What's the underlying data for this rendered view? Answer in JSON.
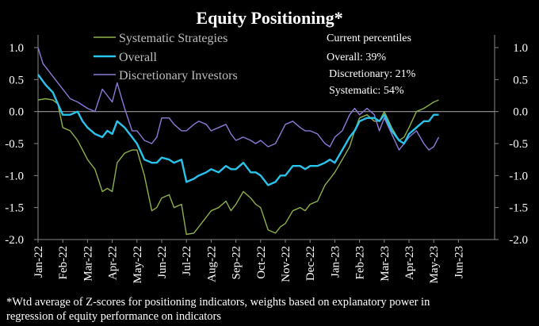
{
  "chart_data": {
    "type": "line",
    "title": "Equity Positioning*",
    "footnote_line1": "*Wtd average of Z-scores for positioning indicators, weights based on explanatory power in",
    "footnote_line2": "regression of equity performance on indicators",
    "y_ticks_left": [
      "1.0",
      "0.5",
      "0.0",
      "-0.5",
      "-1.0",
      "-1.5",
      "-2.0"
    ],
    "y_ticks_right": [
      "1.0",
      "0.5",
      "0.0",
      "-0.5",
      "-1.0",
      "-1.5",
      "-2.0"
    ],
    "y_tick_values": [
      1.0,
      0.5,
      0.0,
      -0.5,
      -1.0,
      -1.5,
      -2.0
    ],
    "ylim": [
      -2.0,
      1.0
    ],
    "x_tick_labels": [
      "Jan-22",
      "Feb-22",
      "Mar-22",
      "Apr-22",
      "May-22",
      "Jun-22",
      "Jul-22",
      "Aug-22",
      "Sep-22",
      "Oct-22",
      "Nov-22",
      "Dec-22",
      "Jan-23",
      "Feb-23",
      "Mar-23",
      "Apr-23",
      "May-23",
      "Jun-23"
    ],
    "xlim": [
      0,
      17
    ],
    "zero_line": true,
    "legend_position": "top-left",
    "annotation": {
      "title": "Current percentiles",
      "lines": [
        "Overall: 39%",
        "Discretionary: 21%",
        "Systematic: 54%"
      ]
    },
    "series": [
      {
        "name": "Systematic Strategies",
        "color": "#8db04a",
        "width": 1.4,
        "points": [
          [
            0.0,
            0.18
          ],
          [
            0.3,
            0.2
          ],
          [
            0.6,
            0.18
          ],
          [
            0.8,
            0.12
          ],
          [
            1.0,
            -0.25
          ],
          [
            1.3,
            -0.3
          ],
          [
            1.6,
            -0.45
          ],
          [
            1.8,
            -0.6
          ],
          [
            2.0,
            -0.75
          ],
          [
            2.3,
            -0.9
          ],
          [
            2.6,
            -1.25
          ],
          [
            2.8,
            -1.2
          ],
          [
            3.0,
            -1.25
          ],
          [
            3.2,
            -0.8
          ],
          [
            3.5,
            -0.65
          ],
          [
            3.8,
            -0.6
          ],
          [
            4.0,
            -0.6
          ],
          [
            4.3,
            -1.0
          ],
          [
            4.6,
            -1.55
          ],
          [
            4.8,
            -1.5
          ],
          [
            5.0,
            -1.35
          ],
          [
            5.3,
            -1.3
          ],
          [
            5.5,
            -1.5
          ],
          [
            5.8,
            -1.45
          ],
          [
            6.0,
            -1.92
          ],
          [
            6.3,
            -1.9
          ],
          [
            6.5,
            -1.8
          ],
          [
            6.8,
            -1.65
          ],
          [
            7.0,
            -1.55
          ],
          [
            7.3,
            -1.5
          ],
          [
            7.6,
            -1.4
          ],
          [
            7.8,
            -1.55
          ],
          [
            8.0,
            -1.45
          ],
          [
            8.3,
            -1.25
          ],
          [
            8.6,
            -1.35
          ],
          [
            8.8,
            -1.45
          ],
          [
            9.0,
            -1.5
          ],
          [
            9.3,
            -1.85
          ],
          [
            9.6,
            -1.9
          ],
          [
            9.8,
            -1.8
          ],
          [
            10.0,
            -1.75
          ],
          [
            10.3,
            -1.55
          ],
          [
            10.6,
            -1.5
          ],
          [
            10.8,
            -1.55
          ],
          [
            11.0,
            -1.45
          ],
          [
            11.3,
            -1.4
          ],
          [
            11.6,
            -1.15
          ],
          [
            11.8,
            -1.05
          ],
          [
            12.0,
            -0.95
          ],
          [
            12.3,
            -0.75
          ],
          [
            12.6,
            -0.55
          ],
          [
            12.8,
            -0.3
          ],
          [
            13.0,
            -0.1
          ],
          [
            13.3,
            -0.05
          ],
          [
            13.6,
            -0.15
          ],
          [
            13.8,
            -0.15
          ],
          [
            14.0,
            0.0
          ],
          [
            14.3,
            -0.25
          ],
          [
            14.6,
            -0.45
          ],
          [
            14.8,
            -0.4
          ],
          [
            15.0,
            -0.25
          ],
          [
            15.3,
            0.0
          ],
          [
            15.6,
            0.05
          ],
          [
            15.8,
            0.1
          ],
          [
            16.0,
            0.15
          ],
          [
            16.2,
            0.18
          ]
        ]
      },
      {
        "name": "Overall",
        "color": "#29c4ec",
        "width": 2.4,
        "points": [
          [
            0.0,
            0.58
          ],
          [
            0.3,
            0.42
          ],
          [
            0.6,
            0.3
          ],
          [
            0.8,
            0.12
          ],
          [
            1.0,
            -0.05
          ],
          [
            1.3,
            -0.05
          ],
          [
            1.6,
            0.0
          ],
          [
            1.8,
            -0.15
          ],
          [
            2.0,
            -0.25
          ],
          [
            2.3,
            -0.35
          ],
          [
            2.6,
            -0.4
          ],
          [
            2.8,
            -0.3
          ],
          [
            3.0,
            -0.35
          ],
          [
            3.2,
            -0.15
          ],
          [
            3.5,
            -0.25
          ],
          [
            3.8,
            -0.4
          ],
          [
            4.0,
            -0.5
          ],
          [
            4.3,
            -0.75
          ],
          [
            4.6,
            -0.8
          ],
          [
            4.8,
            -0.8
          ],
          [
            5.0,
            -0.72
          ],
          [
            5.3,
            -0.75
          ],
          [
            5.5,
            -0.8
          ],
          [
            5.8,
            -0.75
          ],
          [
            6.0,
            -1.1
          ],
          [
            6.3,
            -1.05
          ],
          [
            6.5,
            -1.0
          ],
          [
            6.8,
            -0.95
          ],
          [
            7.0,
            -0.9
          ],
          [
            7.3,
            -0.95
          ],
          [
            7.6,
            -0.85
          ],
          [
            7.8,
            -0.9
          ],
          [
            8.0,
            -0.9
          ],
          [
            8.3,
            -0.8
          ],
          [
            8.6,
            -0.95
          ],
          [
            8.8,
            -0.95
          ],
          [
            9.0,
            -1.0
          ],
          [
            9.3,
            -1.15
          ],
          [
            9.6,
            -1.1
          ],
          [
            9.8,
            -1.0
          ],
          [
            10.0,
            -1.0
          ],
          [
            10.3,
            -0.85
          ],
          [
            10.6,
            -0.85
          ],
          [
            10.8,
            -0.9
          ],
          [
            11.0,
            -0.85
          ],
          [
            11.3,
            -0.85
          ],
          [
            11.6,
            -0.8
          ],
          [
            11.8,
            -0.75
          ],
          [
            12.0,
            -0.8
          ],
          [
            12.3,
            -0.6
          ],
          [
            12.6,
            -0.4
          ],
          [
            12.8,
            -0.3
          ],
          [
            13.0,
            -0.15
          ],
          [
            13.3,
            -0.1
          ],
          [
            13.6,
            -0.1
          ],
          [
            13.8,
            -0.15
          ],
          [
            14.0,
            -0.05
          ],
          [
            14.3,
            -0.3
          ],
          [
            14.6,
            -0.45
          ],
          [
            14.8,
            -0.5
          ],
          [
            15.0,
            -0.35
          ],
          [
            15.3,
            -0.25
          ],
          [
            15.6,
            -0.15
          ],
          [
            15.8,
            -0.15
          ],
          [
            16.0,
            -0.05
          ],
          [
            16.2,
            -0.05
          ]
        ]
      },
      {
        "name": "Discretionary Investors",
        "color": "#8a7ad8",
        "width": 1.4,
        "points": [
          [
            0.0,
            1.0
          ],
          [
            0.2,
            0.75
          ],
          [
            0.5,
            0.6
          ],
          [
            0.8,
            0.45
          ],
          [
            1.0,
            0.35
          ],
          [
            1.3,
            0.2
          ],
          [
            1.6,
            0.15
          ],
          [
            1.8,
            0.1
          ],
          [
            2.0,
            0.05
          ],
          [
            2.3,
            0.0
          ],
          [
            2.6,
            0.35
          ],
          [
            2.8,
            0.25
          ],
          [
            3.0,
            0.15
          ],
          [
            3.2,
            0.45
          ],
          [
            3.5,
            0.05
          ],
          [
            3.8,
            -0.3
          ],
          [
            4.0,
            -0.3
          ],
          [
            4.3,
            -0.45
          ],
          [
            4.6,
            -0.5
          ],
          [
            4.8,
            -0.4
          ],
          [
            5.0,
            -0.1
          ],
          [
            5.3,
            -0.1
          ],
          [
            5.5,
            -0.2
          ],
          [
            5.8,
            -0.3
          ],
          [
            6.0,
            -0.3
          ],
          [
            6.3,
            -0.2
          ],
          [
            6.5,
            -0.15
          ],
          [
            6.8,
            -0.2
          ],
          [
            7.0,
            -0.3
          ],
          [
            7.3,
            -0.25
          ],
          [
            7.6,
            -0.2
          ],
          [
            7.8,
            -0.35
          ],
          [
            8.0,
            -0.45
          ],
          [
            8.3,
            -0.4
          ],
          [
            8.6,
            -0.45
          ],
          [
            8.8,
            -0.5
          ],
          [
            9.0,
            -0.45
          ],
          [
            9.3,
            -0.55
          ],
          [
            9.6,
            -0.5
          ],
          [
            9.8,
            -0.35
          ],
          [
            10.0,
            -0.2
          ],
          [
            10.3,
            -0.15
          ],
          [
            10.6,
            -0.25
          ],
          [
            10.8,
            -0.3
          ],
          [
            11.0,
            -0.3
          ],
          [
            11.3,
            -0.35
          ],
          [
            11.6,
            -0.5
          ],
          [
            11.8,
            -0.55
          ],
          [
            12.0,
            -0.4
          ],
          [
            12.3,
            -0.3
          ],
          [
            12.6,
            -0.05
          ],
          [
            12.8,
            0.05
          ],
          [
            13.0,
            -0.05
          ],
          [
            13.3,
            0.05
          ],
          [
            13.6,
            -0.05
          ],
          [
            13.8,
            -0.3
          ],
          [
            14.0,
            -0.1
          ],
          [
            14.3,
            -0.35
          ],
          [
            14.6,
            -0.6
          ],
          [
            14.8,
            -0.5
          ],
          [
            15.0,
            -0.4
          ],
          [
            15.3,
            -0.3
          ],
          [
            15.6,
            -0.5
          ],
          [
            15.8,
            -0.6
          ],
          [
            16.0,
            -0.55
          ],
          [
            16.2,
            -0.4
          ]
        ]
      }
    ]
  }
}
